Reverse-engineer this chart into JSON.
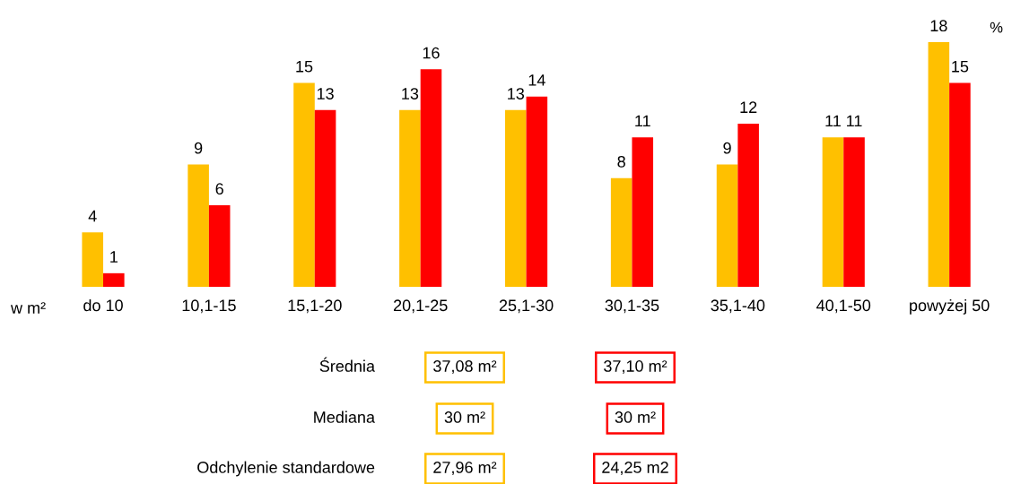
{
  "chart_data": {
    "type": "bar",
    "categories": [
      "do 10",
      "10,1-15",
      "15,1-20",
      "20,1-25",
      "25,1-30",
      "30,1-35",
      "35,1-40",
      "40,1-50",
      "powyżej 50"
    ],
    "series": [
      {
        "color": "#ffc000",
        "values": [
          4,
          9,
          15,
          13,
          13,
          8,
          9,
          11,
          18
        ]
      },
      {
        "color": "#ff0000",
        "values": [
          1,
          6,
          13,
          16,
          14,
          11,
          12,
          11,
          15
        ]
      }
    ],
    "data_labels": true,
    "tick_labels": "x",
    "grid": false,
    "legend": false,
    "annotations": [
      "%",
      "w m²",
      "Średnia",
      "37,08 m²",
      "37,10 m²",
      "Mediana",
      "30 m²",
      "30 m²",
      "Odchylenie standardowe",
      "27,96 m²",
      "24,25 m2"
    ]
  }
}
